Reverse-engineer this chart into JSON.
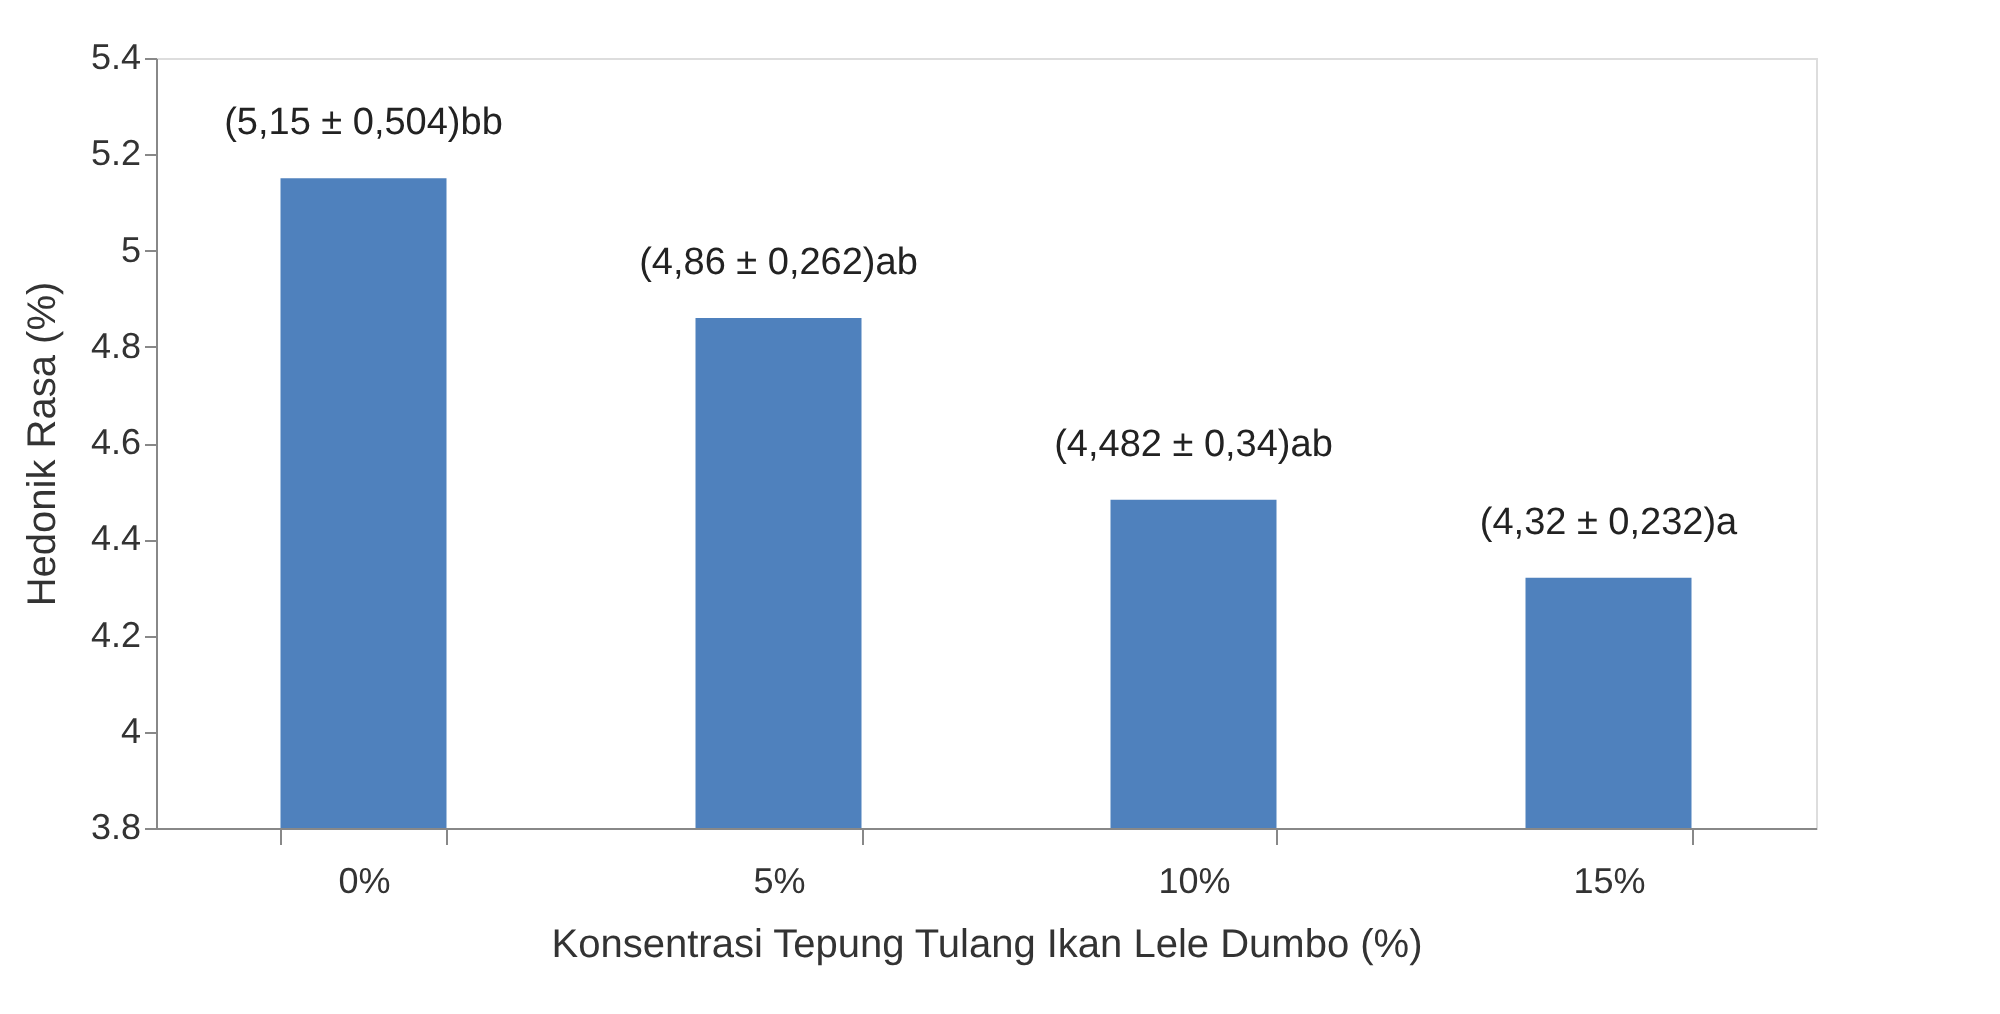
{
  "chart_data": {
    "type": "bar",
    "xlabel": "Konsentrasi Tepung  Tulang Ikan Lele Dumbo (%)",
    "ylabel": "Hedonik  Rasa (%)",
    "categories": [
      "0%",
      "5%",
      "10%",
      "15%"
    ],
    "values": [
      5.15,
      4.86,
      4.482,
      4.32
    ],
    "value_labels": [
      "(5,15 ± 0,504)bb",
      "(4,86 ± 0,262)ab",
      "(4,482 ± 0,34)ab",
      "(4,32 ± 0,232)a"
    ],
    "color": "#4f81bd",
    "ylim": [
      3.8,
      5.4
    ],
    "yticks": [
      3.8,
      4,
      4.2,
      4.4,
      4.6,
      4.8,
      5,
      5.2,
      5.4
    ],
    "grid": false
  }
}
